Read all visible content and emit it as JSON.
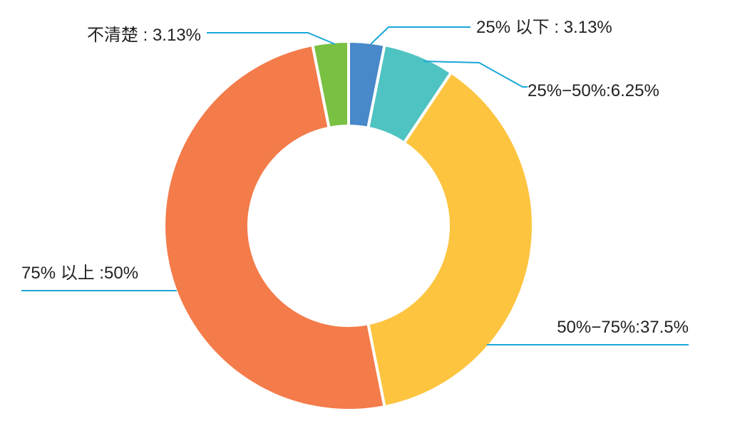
{
  "chart_data": {
    "type": "pie",
    "categories": [
      "25% 以下",
      "25%−50%",
      "50%−75%",
      "75% 以上",
      "不清楚"
    ],
    "values": [
      3.13,
      6.25,
      37.5,
      50,
      3.13
    ],
    "colors": [
      "#4789c9",
      "#4ec3c1",
      "#fdc43f",
      "#f47b4a",
      "#7ac143"
    ],
    "labels": [
      "25% 以下 : 3.13%",
      "25%−50%:6.25%",
      "50%−75%:37.5%",
      "75% 以上 :50%",
      "不清楚 : 3.13%"
    ],
    "leader_line_color": "#1aa7d8",
    "hole": true,
    "legend": "none"
  }
}
